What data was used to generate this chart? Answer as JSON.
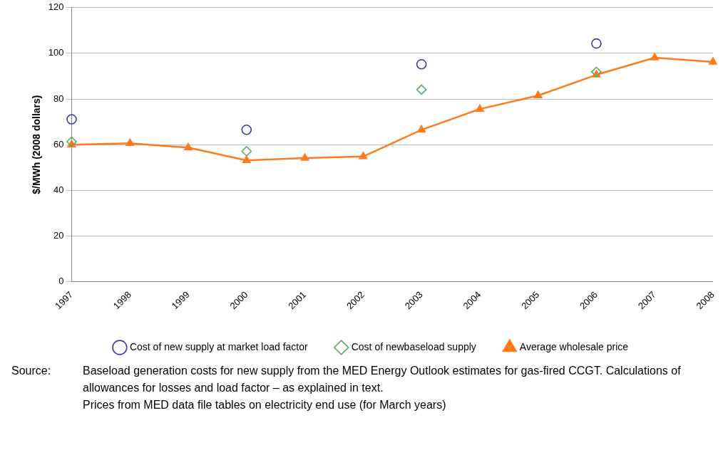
{
  "chart_data": {
    "type": "line",
    "ylabel": "$/MWh (2008 dollars)",
    "categories": [
      "1997",
      "1998",
      "1999",
      "2000",
      "2001",
      "2002",
      "2003",
      "2004",
      "2005",
      "2006",
      "2007",
      "2008"
    ],
    "series": [
      {
        "name": "Cost of new supply at market load factor",
        "type": "scatter",
        "marker": "circle",
        "color": "#3c3c96",
        "values": [
          71.1,
          null,
          null,
          66.5,
          null,
          null,
          95.2,
          null,
          null,
          104.3,
          null,
          null
        ]
      },
      {
        "name": "Cost of newbaseload supply",
        "type": "scatter",
        "marker": "diamond",
        "color": "#5aa86a",
        "values": [
          61.3,
          null,
          null,
          57.1,
          null,
          null,
          84.1,
          null,
          null,
          91.9,
          null,
          null
        ]
      },
      {
        "name": "Average wholesale price",
        "type": "line",
        "marker": "triangle",
        "color": "#ff7a1a",
        "values": [
          60.0,
          60.6,
          58.7,
          53.1,
          54.1,
          54.8,
          66.5,
          75.6,
          81.5,
          90.6,
          98.1,
          96.2
        ]
      }
    ],
    "ylim": [
      0,
      120
    ],
    "yticks": [
      0,
      20,
      40,
      60,
      80,
      100,
      120
    ],
    "grid": "y",
    "legend": "bottom",
    "annotations": [
      "Source:",
      "Baseload generation costs for new supply from the MED Energy Outlook estimates for gas-fired CCGT.  Calculations of allowances for losses and load factor – as explained in text.",
      "Prices from MED data file tables on electricity end use (for March years)"
    ]
  }
}
